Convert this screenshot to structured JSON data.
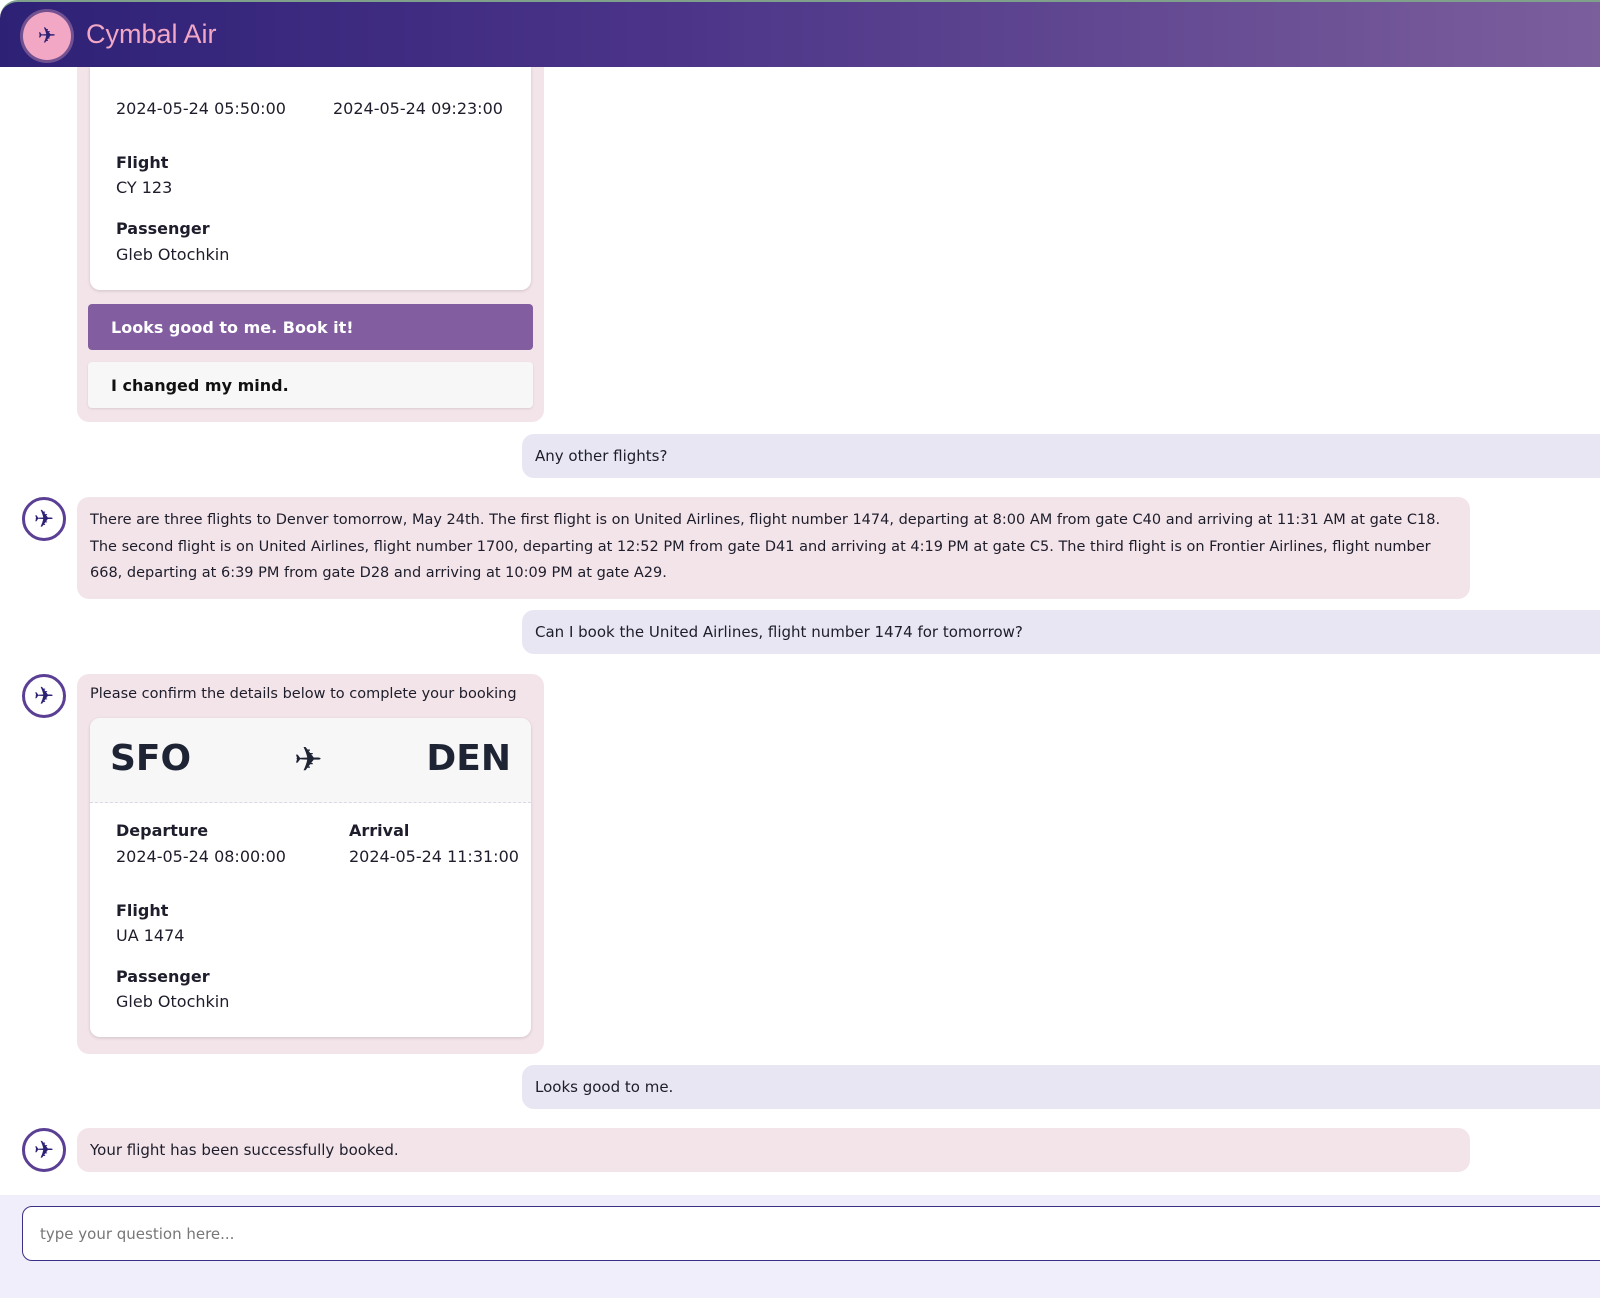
{
  "header": {
    "title": "Cymbal Air",
    "logo_icon": "airplane-icon"
  },
  "colors": {
    "header_start": "#2d2176",
    "header_end": "#7b5e9c",
    "bot_bubble": "#f3e4e9",
    "user_bubble": "#e8e6f3",
    "primary_button": "#825ea0"
  },
  "messages": {
    "first_card": {
      "departure_time": "2024-05-24 05:50:00",
      "arrival_time": "2024-05-24 09:23:00",
      "flight_label": "Flight",
      "flight": "CY 123",
      "passenger_label": "Passenger",
      "passenger": "Gleb Otochkin",
      "confirm_button": "Looks good to me. Book it!",
      "cancel_button": "I changed my mind."
    },
    "user1": "Any other flights?",
    "bot1": "There are three flights to Denver tomorrow, May 24th. The first flight is on United Airlines, flight number 1474, departing at 8:00 AM from gate C40 and arriving at 11:31 AM at gate C18. The second flight is on United Airlines, flight number 1700, departing at 12:52 PM from gate D41 and arriving at 4:19 PM at gate C5. The third flight is on Frontier Airlines, flight number 668, departing at 6:39 PM from gate D28 and arriving at 10:09 PM at gate A29.",
    "user2": "Can I book the United Airlines, flight number 1474 for tomorrow?",
    "bot2": {
      "intro": "Please confirm the details below to complete your booking",
      "origin": "SFO",
      "destination": "DEN",
      "departure_label": "Departure",
      "departure_time": "2024-05-24 08:00:00",
      "arrival_label": "Arrival",
      "arrival_time": "2024-05-24 11:31:00",
      "flight_label": "Flight",
      "flight": "UA 1474",
      "passenger_label": "Passenger",
      "passenger": "Gleb Otochkin"
    },
    "user3": "Looks good to me.",
    "bot3": "Your flight has been successfully booked."
  },
  "input": {
    "placeholder": "type your question here..."
  }
}
